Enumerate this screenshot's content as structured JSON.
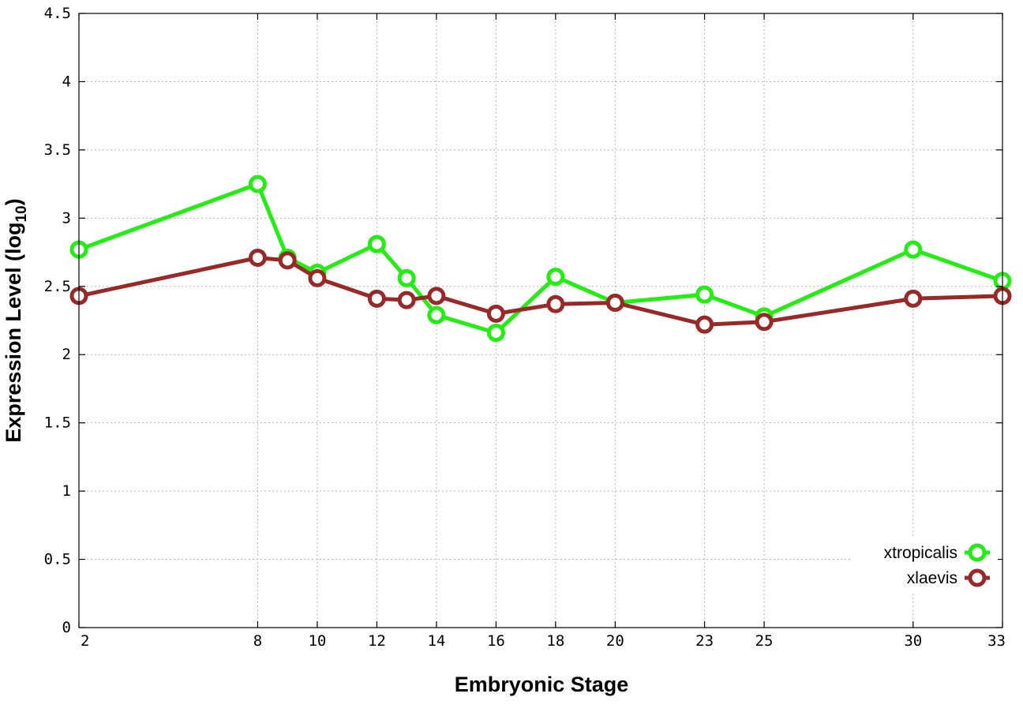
{
  "chart_data": {
    "type": "line",
    "xlabel": "Embryonic Stage",
    "ylabel_main": "Expression Level (log",
    "ylabel_sub": "10",
    "ylabel_close": ")",
    "xlim": [
      2,
      33
    ],
    "ylim": [
      0,
      4.5
    ],
    "x_ticks": [
      2,
      8,
      10,
      12,
      14,
      16,
      18,
      20,
      23,
      25,
      30,
      33
    ],
    "x_tick_labels": [
      "2",
      "8",
      "10",
      "12",
      "14",
      "16",
      "18",
      "20",
      "23",
      "25",
      "30",
      "33"
    ],
    "y_ticks": [
      0,
      0.5,
      1,
      1.5,
      2,
      2.5,
      3,
      3.5,
      4,
      4.5
    ],
    "y_tick_labels": [
      "0",
      "0.5",
      "1",
      "1.5",
      "2",
      "2.5",
      "3",
      "3.5",
      "4",
      "4.5"
    ],
    "grid": true,
    "legend_position": "bottom-right",
    "series": [
      {
        "name": "xtropicalis",
        "color": "#22ee11",
        "x": [
          2,
          8,
          9,
          10,
          12,
          13,
          14,
          16,
          18,
          20,
          23,
          25,
          30,
          33
        ],
        "y": [
          2.77,
          3.25,
          2.71,
          2.6,
          2.81,
          2.56,
          2.29,
          2.16,
          2.57,
          2.38,
          2.44,
          2.28,
          2.77,
          2.54
        ]
      },
      {
        "name": "xlaevis",
        "color": "#992929",
        "x": [
          2,
          8,
          9,
          10,
          12,
          13,
          14,
          16,
          18,
          20,
          23,
          25,
          30,
          33
        ],
        "y": [
          2.43,
          2.71,
          2.69,
          2.56,
          2.41,
          2.4,
          2.43,
          2.3,
          2.37,
          2.38,
          2.22,
          2.24,
          2.41,
          2.43
        ]
      }
    ]
  }
}
